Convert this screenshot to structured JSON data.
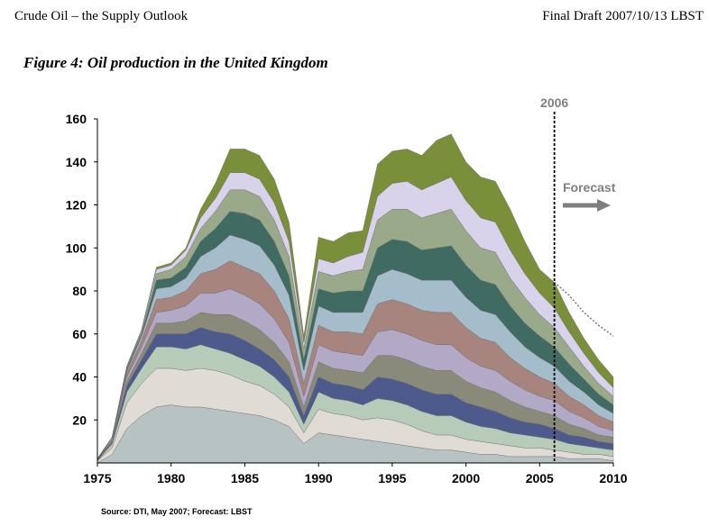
{
  "header": {
    "left": "Crude Oil – the Supply Outlook",
    "right": "Final Draft 2007/10/13 LBST"
  },
  "figure": {
    "title": "Figure 4: Oil production in the United Kingdom",
    "source": "Source: DTI, May 2007; Forecast: LBST"
  },
  "chart_data": {
    "type": "area",
    "stacked": true,
    "title": "",
    "xlabel": "",
    "ylabel": "",
    "xlim": [
      1975,
      2010
    ],
    "ylim": [
      0,
      160
    ],
    "x_ticks": [
      1975,
      1980,
      1985,
      1990,
      1995,
      2000,
      2005,
      2010
    ],
    "y_ticks": [
      20,
      40,
      60,
      80,
      100,
      120,
      140,
      160
    ],
    "grid": false,
    "legend": "none",
    "x": [
      1975,
      1976,
      1977,
      1978,
      1979,
      1980,
      1981,
      1982,
      1983,
      1984,
      1985,
      1986,
      1987,
      1988,
      1989,
      1990,
      1991,
      1992,
      1993,
      1994,
      1995,
      1996,
      1997,
      1998,
      1999,
      2000,
      2001,
      2002,
      2003,
      2004,
      2005,
      2006,
      2007,
      2008,
      2009,
      2010
    ],
    "total": [
      2,
      12,
      45,
      62,
      91,
      93,
      100,
      118,
      130,
      146,
      146,
      143,
      132,
      110,
      63,
      105,
      103,
      107,
      108,
      139,
      145,
      146,
      143,
      150,
      153,
      140,
      133,
      131,
      118,
      103,
      90,
      84,
      70,
      58,
      48,
      40
    ],
    "forecast": {
      "label": "Forecast",
      "x": [
        2006,
        2007,
        2008,
        2009,
        2010
      ],
      "y": [
        84,
        78,
        70,
        64,
        59
      ],
      "divider_x": 2006,
      "divider_label": "2006"
    },
    "series_colors": [
      "#b7c2c2",
      "#e1dbd5",
      "#b7cbb9",
      "#4d5a8c",
      "#8a8a7a",
      "#b2a9c7",
      "#a7847e",
      "#a5bcca",
      "#3f6b62",
      "#9aa98a",
      "#d8d2ea",
      "#7a8f3a",
      "#c9d4e1",
      "#b59c7f",
      "#8b6f8e",
      "#6e8fa3"
    ],
    "series": [
      {
        "values": [
          0,
          4,
          16,
          22,
          26,
          27,
          26,
          26,
          25,
          24,
          23,
          22,
          20,
          17,
          9,
          14,
          13,
          12,
          11,
          10,
          9,
          8,
          7,
          6,
          6,
          5,
          4,
          4,
          3,
          3,
          3,
          3,
          2,
          2,
          2,
          1
        ]
      },
      {
        "values": [
          1,
          3,
          12,
          15,
          18,
          17,
          17,
          18,
          18,
          17,
          15,
          14,
          12,
          9,
          5,
          11,
          10,
          10,
          9,
          11,
          11,
          10,
          8,
          7,
          7,
          6,
          6,
          5,
          5,
          4,
          4,
          3,
          3,
          2,
          2,
          2
        ]
      },
      {
        "values": [
          0,
          2,
          5,
          7,
          10,
          10,
          10,
          11,
          10,
          10,
          10,
          9,
          8,
          7,
          4,
          8,
          7,
          7,
          7,
          9,
          9,
          9,
          9,
          9,
          9,
          8,
          7,
          7,
          6,
          6,
          5,
          5,
          4,
          4,
          3,
          3
        ]
      },
      {
        "values": [
          0,
          1,
          3,
          4,
          6,
          6,
          7,
          8,
          8,
          9,
          9,
          8,
          8,
          7,
          4,
          7,
          7,
          7,
          7,
          10,
          10,
          10,
          10,
          10,
          10,
          9,
          9,
          8,
          7,
          6,
          6,
          5,
          4,
          4,
          3,
          3
        ]
      },
      {
        "values": [
          0,
          1,
          2,
          3,
          5,
          5,
          6,
          7,
          8,
          9,
          9,
          9,
          8,
          7,
          4,
          7,
          7,
          7,
          8,
          10,
          11,
          11,
          11,
          11,
          11,
          10,
          9,
          9,
          8,
          7,
          6,
          6,
          5,
          4,
          3,
          3
        ]
      },
      {
        "values": [
          0,
          1,
          2,
          3,
          5,
          6,
          7,
          9,
          10,
          12,
          12,
          12,
          11,
          9,
          5,
          8,
          8,
          8,
          8,
          11,
          12,
          12,
          12,
          12,
          12,
          11,
          10,
          10,
          9,
          8,
          7,
          7,
          6,
          5,
          4,
          3
        ]
      },
      {
        "values": [
          0,
          0,
          2,
          3,
          6,
          6,
          7,
          9,
          11,
          13,
          13,
          14,
          13,
          11,
          6,
          9,
          9,
          10,
          10,
          13,
          14,
          14,
          14,
          15,
          15,
          14,
          13,
          13,
          11,
          10,
          9,
          8,
          7,
          6,
          5,
          4
        ]
      },
      {
        "values": [
          0,
          0,
          1,
          2,
          5,
          5,
          6,
          8,
          10,
          12,
          13,
          13,
          12,
          11,
          6,
          9,
          9,
          9,
          10,
          13,
          14,
          14,
          14,
          15,
          15,
          14,
          13,
          13,
          12,
          10,
          9,
          8,
          7,
          6,
          5,
          4
        ]
      },
      {
        "values": [
          1,
          0,
          1,
          1,
          4,
          4,
          5,
          7,
          9,
          11,
          12,
          12,
          11,
          9,
          5,
          8,
          9,
          10,
          10,
          13,
          14,
          15,
          14,
          15,
          16,
          15,
          14,
          14,
          12,
          11,
          10,
          9,
          8,
          6,
          5,
          4
        ]
      },
      {
        "values": [
          0,
          0,
          1,
          1,
          3,
          4,
          5,
          6,
          8,
          10,
          11,
          11,
          10,
          9,
          5,
          8,
          8,
          9,
          10,
          13,
          14,
          15,
          15,
          16,
          17,
          16,
          15,
          15,
          13,
          12,
          10,
          9,
          8,
          6,
          5,
          4
        ]
      },
      {
        "values": [
          0,
          0,
          0,
          1,
          2,
          2,
          3,
          5,
          6,
          8,
          8,
          8,
          8,
          7,
          3,
          6,
          6,
          7,
          8,
          11,
          12,
          13,
          13,
          14,
          15,
          14,
          14,
          14,
          13,
          11,
          10,
          9,
          7,
          6,
          5,
          4
        ]
      },
      {
        "values": [
          0,
          0,
          0,
          0,
          1,
          1,
          1,
          4,
          7,
          11,
          11,
          11,
          11,
          9,
          3,
          10,
          10,
          11,
          10,
          15,
          15,
          15,
          16,
          20,
          20,
          18,
          19,
          19,
          19,
          15,
          11,
          12,
          9,
          7,
          6,
          5
        ]
      }
    ]
  }
}
